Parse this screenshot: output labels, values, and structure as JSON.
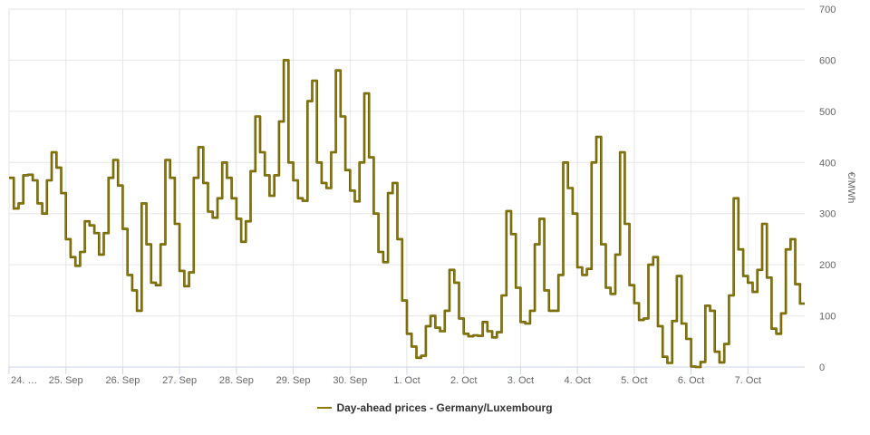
{
  "chart_data": {
    "type": "line",
    "step": true,
    "title": "",
    "xlabel": "",
    "ylabel": "€/MWh",
    "ylim": [
      0,
      700
    ],
    "y_ticks": [
      "0",
      "100",
      "200",
      "300",
      "400",
      "500",
      "600",
      "700"
    ],
    "y_axis_side": "right",
    "grid": true,
    "legend_placement": "bottom",
    "x_tick_labels": [
      "24. …",
      "25. Sep",
      "26. Sep",
      "27. Sep",
      "28. Sep",
      "29. Sep",
      "30. Sep",
      "1. Oct",
      "2. Oct",
      "3. Oct",
      "4. Oct",
      "5. Oct",
      "6. Oct",
      "7. Oct"
    ],
    "sampling": "2-hour steps per day",
    "series": [
      {
        "name": "Day-ahead prices - Germany/Luxembourg",
        "color": "#8c7b00",
        "days": [
          {
            "date": "24. Sep",
            "values": [
              370,
              310,
              320,
              375,
              376,
              365,
              320,
              300,
              365,
              420,
              390,
              340
            ]
          },
          {
            "date": "25. Sep",
            "values": [
              250,
              215,
              198,
              225,
              285,
              277,
              262,
              220,
              262,
              370,
              405,
              355
            ]
          },
          {
            "date": "26. Sep",
            "values": [
              270,
              180,
              150,
              110,
              320,
              240,
              165,
              160,
              240,
              405,
              370,
              280
            ]
          },
          {
            "date": "27. Sep",
            "values": [
              188,
              158,
              185,
              370,
              430,
              360,
              304,
              292,
              330,
              400,
              370,
              330
            ]
          },
          {
            "date": "28. Sep",
            "values": [
              290,
              245,
              285,
              383,
              490,
              420,
              375,
              335,
              375,
              480,
              600,
              400
            ]
          },
          {
            "date": "29. Sep",
            "values": [
              365,
              330,
              325,
              520,
              560,
              400,
              360,
              350,
              420,
              580,
              490,
              385
            ]
          },
          {
            "date": "30. Sep",
            "values": [
              345,
              324,
              400,
              535,
              410,
              300,
              225,
              205,
              340,
              360,
              250,
              130
            ]
          },
          {
            "date": "1. Oct",
            "values": [
              65,
              40,
              18,
              22,
              80,
              100,
              77,
              70,
              110,
              190,
              165,
              95
            ]
          },
          {
            "date": "2. Oct",
            "values": [
              65,
              60,
              62,
              61,
              88,
              70,
              58,
              68,
              140,
              305,
              260,
              155
            ]
          },
          {
            "date": "3. Oct",
            "values": [
              88,
              85,
              110,
              240,
              290,
              150,
              110,
              110,
              180,
              400,
              350,
              300
            ]
          },
          {
            "date": "4. Oct",
            "values": [
              195,
              180,
              192,
              400,
              450,
              240,
              155,
              143,
              220,
              420,
              280,
              160
            ]
          },
          {
            "date": "5. Oct",
            "values": [
              125,
              92,
              95,
              200,
              215,
              80,
              20,
              8,
              90,
              178,
              85,
              55
            ]
          },
          {
            "date": "6. Oct",
            "values": [
              1,
              0,
              10,
              120,
              110,
              30,
              9,
              45,
              140,
              330,
              230,
              178
            ]
          },
          {
            "date": "7. Oct",
            "values": [
              165,
              147,
              190,
              280,
              175,
              75,
              65,
              105,
              230,
              250,
              162,
              124
            ]
          }
        ]
      }
    ]
  },
  "legend": {
    "label": "Day-ahead prices - Germany/Luxembourg"
  }
}
